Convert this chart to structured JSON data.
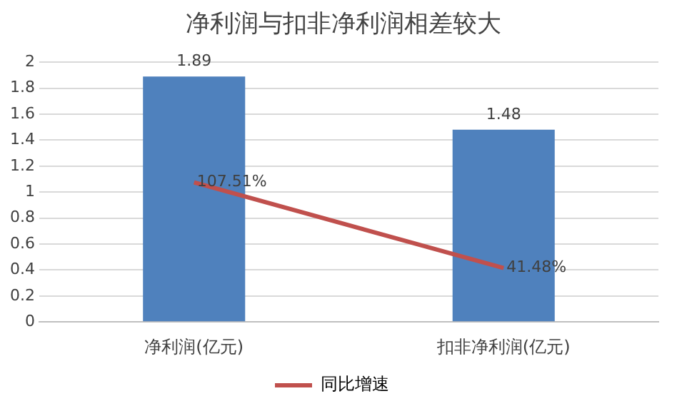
{
  "chart_data": {
    "type": "bar",
    "title": "净利润与扣非净利润相差较大",
    "categories": [
      "净利润(亿元)",
      "扣非净利润(亿元)"
    ],
    "series": [
      {
        "color": "#4f81bd",
        "values": [
          1.89,
          1.48
        ],
        "value_labels": [
          "1.89",
          "1.48"
        ]
      },
      {
        "type": "line",
        "name": "同比增速",
        "color": "#c0504d",
        "values": [
          1.0751,
          0.4148
        ],
        "value_labels": [
          "107.51%",
          "41.48%"
        ]
      }
    ],
    "ylim": [
      0,
      2
    ],
    "yticks": [
      0,
      0.2,
      0.4,
      0.6,
      0.8,
      1,
      1.2,
      1.4,
      1.6,
      1.8,
      2
    ],
    "grid": "y",
    "legend": "bottom",
    "marker": "none"
  }
}
